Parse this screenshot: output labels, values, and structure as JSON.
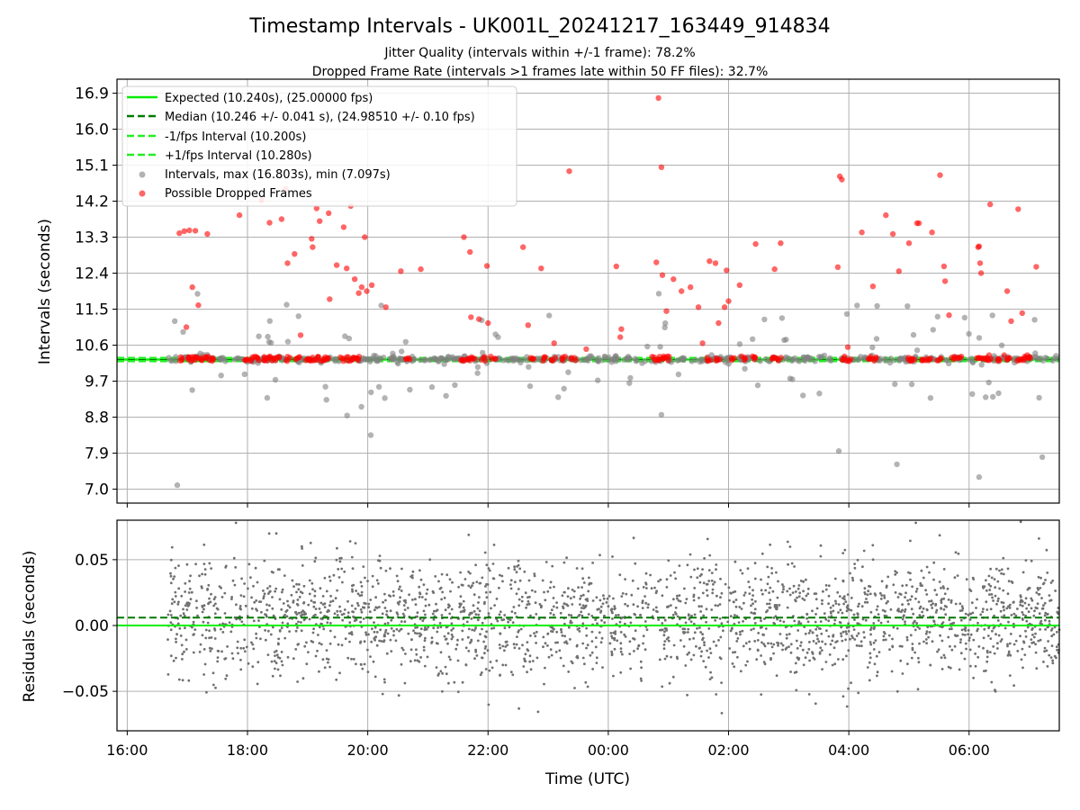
{
  "chart_data": [
    {
      "type": "scatter",
      "title": "Timestamp Intervals - UK001L_20241217_163449_914834",
      "subtitle_lines": [
        "Jitter Quality (intervals within +/-1 frame): 78.2%",
        "Dropped Frame Rate (intervals >1 frames late within 50 FF files): 32.7%"
      ],
      "ylabel": "Intervals (seconds)",
      "xlabel": "",
      "x_axis": "time",
      "xlim_hours": [
        15.83,
        31.5
      ],
      "ylim": [
        6.65,
        17.25
      ],
      "yticks": [
        7.0,
        7.9,
        8.8,
        9.7,
        10.6,
        11.5,
        12.4,
        13.3,
        14.2,
        15.1,
        16.0,
        16.9
      ],
      "ytick_labels": [
        "7.0",
        "7.9",
        "8.8",
        "9.7",
        "10.6",
        "11.5",
        "12.4",
        "13.3",
        "14.2",
        "15.1",
        "16.0",
        "16.9"
      ],
      "grid": true,
      "legend_position": "top-left",
      "reference_lines": [
        {
          "name": "Expected (10.240s), (25.00000 fps)",
          "y": 10.24,
          "style": "solid",
          "color": "#00ee00"
        },
        {
          "name": "Median (10.246 +/- 0.041 s), (24.98510 +/- 0.10 fps)",
          "y": 10.246,
          "style": "dashed",
          "color": "#007a00"
        },
        {
          "name": "-1/fps Interval (10.200s)",
          "y": 10.2,
          "style": "dashed",
          "color": "#22ee22"
        },
        {
          "name": "+1/fps Interval (10.280s)",
          "y": 10.28,
          "style": "dashed",
          "color": "#22ee22"
        }
      ],
      "series": [
        {
          "name": "Intervals, max (16.803s), min (7.097s)",
          "color": "#808080",
          "time_range": [
            "16:40",
            "07:30"
          ],
          "max": 16.803,
          "min": 7.097,
          "median": 10.246
        },
        {
          "name": "Possible Dropped Frames",
          "color": "#ff0000",
          "points": [
            [
              "16:52",
              13.4
            ],
            [
              "16:57",
              13.45
            ],
            [
              "17:02",
              13.47
            ],
            [
              "17:08",
              13.46
            ],
            [
              "17:20",
              13.38
            ],
            [
              "16:59",
              11.05
            ],
            [
              "17:05",
              12.05
            ],
            [
              "17:11",
              11.6
            ],
            [
              "17:52",
              13.85
            ],
            [
              "18:14",
              14.22
            ],
            [
              "18:22",
              13.66
            ],
            [
              "18:34",
              13.75
            ],
            [
              "18:38",
              14.5
            ],
            [
              "18:40",
              12.65
            ],
            [
              "18:47",
              12.88
            ],
            [
              "18:53",
              10.85
            ],
            [
              "19:04",
              13.26
            ],
            [
              "19:05",
              13.05
            ],
            [
              "19:09",
              14.02
            ],
            [
              "19:12",
              13.7
            ],
            [
              "19:21",
              13.9
            ],
            [
              "19:22",
              11.75
            ],
            [
              "19:29",
              12.6
            ],
            [
              "19:36",
              13.55
            ],
            [
              "19:39",
              12.52
            ],
            [
              "19:43",
              14.08
            ],
            [
              "19:47",
              12.25
            ],
            [
              "19:51",
              11.9
            ],
            [
              "19:54",
              12.05
            ],
            [
              "19:57",
              13.3
            ],
            [
              "19:59",
              11.95
            ],
            [
              "20:04",
              12.1
            ],
            [
              "20:18",
              11.55
            ],
            [
              "20:33",
              12.45
            ],
            [
              "20:53",
              12.5
            ],
            [
              "21:36",
              13.3
            ],
            [
              "21:42",
              12.93
            ],
            [
              "21:43",
              11.3
            ],
            [
              "21:51",
              11.25
            ],
            [
              "21:59",
              12.58
            ],
            [
              "22:00",
              11.15
            ],
            [
              "22:35",
              13.05
            ],
            [
              "22:40",
              11.1
            ],
            [
              "22:53",
              12.52
            ],
            [
              "23:06",
              10.65
            ],
            [
              "23:21",
              14.95
            ],
            [
              "23:38",
              10.5
            ],
            [
              "00:08",
              12.57
            ],
            [
              "00:12",
              10.8
            ],
            [
              "00:13",
              11.0
            ],
            [
              "00:48",
              12.67
            ],
            [
              "00:50",
              16.78
            ],
            [
              "00:53",
              15.05
            ],
            [
              "00:54",
              12.35
            ],
            [
              "00:58",
              11.45
            ],
            [
              "01:05",
              12.25
            ],
            [
              "01:13",
              11.95
            ],
            [
              "01:22",
              12.05
            ],
            [
              "01:30",
              11.55
            ],
            [
              "01:34",
              10.65
            ],
            [
              "01:41",
              12.7
            ],
            [
              "01:47",
              12.65
            ],
            [
              "01:50",
              11.15
            ],
            [
              "01:56",
              11.55
            ],
            [
              "01:58",
              12.47
            ],
            [
              "02:00",
              11.7
            ],
            [
              "02:11",
              12.1
            ],
            [
              "02:27",
              13.13
            ],
            [
              "02:46",
              12.5
            ],
            [
              "02:52",
              13.15
            ],
            [
              "03:49",
              12.55
            ],
            [
              "03:51",
              14.82
            ],
            [
              "03:53",
              14.74
            ],
            [
              "03:59",
              10.55
            ],
            [
              "04:13",
              13.42
            ],
            [
              "04:24",
              12.07
            ],
            [
              "04:37",
              13.85
            ],
            [
              "04:44",
              13.38
            ],
            [
              "04:50",
              12.45
            ],
            [
              "05:00",
              13.15
            ],
            [
              "05:08",
              13.65
            ],
            [
              "05:10",
              13.65
            ],
            [
              "05:23",
              13.42
            ],
            [
              "05:31",
              14.85
            ],
            [
              "05:35",
              12.57
            ],
            [
              "05:36",
              12.2
            ],
            [
              "05:40",
              11.35
            ],
            [
              "06:09",
              13.05
            ],
            [
              "06:10",
              13.07
            ],
            [
              "06:11",
              12.65
            ],
            [
              "06:12",
              12.4
            ],
            [
              "06:21",
              14.12
            ],
            [
              "06:38",
              11.95
            ],
            [
              "06:42",
              11.2
            ],
            [
              "06:49",
              14.0
            ],
            [
              "06:53",
              11.4
            ],
            [
              "07:07",
              12.56
            ],
            [
              "06:20",
              10.35
            ],
            [
              "06:35",
              10.35
            ],
            [
              "06:58",
              10.35
            ]
          ]
        }
      ]
    },
    {
      "type": "scatter",
      "title": "",
      "xlabel": "Time (UTC)",
      "ylabel": "Residuals (seconds)",
      "xlim_hours": [
        15.83,
        31.5
      ],
      "ylim": [
        -0.08,
        0.08
      ],
      "yticks": [
        -0.05,
        0.0,
        0.05
      ],
      "ytick_labels": [
        "−0.05",
        "0.00",
        "0.05"
      ],
      "xticks": [
        "16:00",
        "18:00",
        "20:00",
        "22:00",
        "00:00",
        "02:00",
        "04:00",
        "06:00"
      ],
      "grid": true,
      "reference_lines": [
        {
          "name": "Expected",
          "y": 0.0,
          "style": "solid",
          "color": "#00ee00"
        },
        {
          "name": "Median",
          "y": 0.006,
          "style": "dashed",
          "color": "#007a00"
        }
      ],
      "series": [
        {
          "name": "Residuals",
          "color": "#707070",
          "time_range": [
            "16:40",
            "07:30"
          ],
          "spread_sd": 0.022
        }
      ]
    }
  ],
  "colors": {
    "expected": "#00ee00",
    "median": "#007a00",
    "fps_bound": "#22ee22",
    "intervals": "#808080",
    "dropped": "#ff0000",
    "residuals": "#707070",
    "grid": "#b0b0b0"
  }
}
